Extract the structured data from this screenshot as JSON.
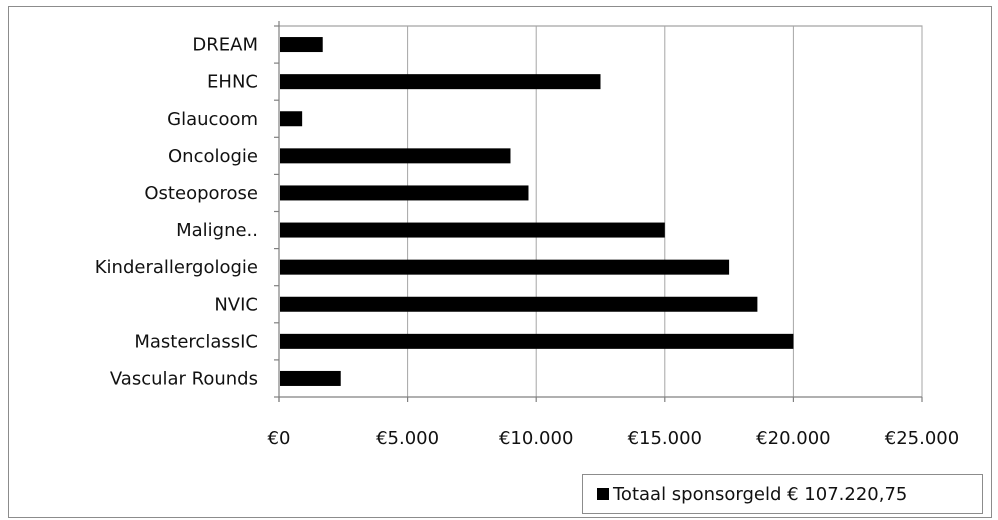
{
  "chart_data": {
    "type": "bar",
    "orientation": "horizontal",
    "categories": [
      "DREAM",
      "EHNC",
      "Glaucoom",
      "Oncologie",
      "Osteoporose",
      "Maligne..",
      "Kinderallergologie",
      "NVIC",
      "MasterclassIC",
      "Vascular Rounds"
    ],
    "series": [
      {
        "name": "Totaal sponsorgeld € 107.220,75",
        "color": "#000000",
        "values": [
          1700,
          12500,
          900,
          9000,
          9700,
          15000,
          17500,
          18600,
          20000,
          2400
        ]
      }
    ],
    "xlim": [
      0,
      25000
    ],
    "x_ticks": [
      0,
      5000,
      10000,
      15000,
      20000,
      25000
    ],
    "x_tick_labels": [
      "€0",
      "€5.000",
      "€10.000",
      "€15.000",
      "€20.000",
      "€25.000"
    ],
    "grid": "vertical",
    "legend_position": "bottom-right"
  }
}
